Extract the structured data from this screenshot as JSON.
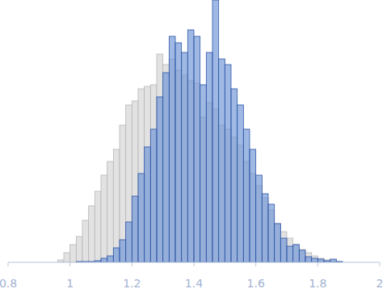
{
  "chart_data": {
    "type": "histogram",
    "bins": [
      0.96,
      0.98,
      1.0,
      1.02,
      1.04,
      1.06,
      1.08,
      1.1,
      1.12,
      1.14,
      1.16,
      1.18,
      1.2,
      1.22,
      1.24,
      1.26,
      1.28,
      1.3,
      1.32,
      1.34,
      1.36,
      1.38,
      1.4,
      1.42,
      1.44,
      1.46,
      1.48,
      1.5,
      1.52,
      1.54,
      1.56,
      1.58,
      1.6,
      1.62,
      1.64,
      1.66,
      1.68,
      1.7,
      1.72,
      1.74,
      1.76,
      1.78,
      1.8,
      1.82,
      1.84,
      1.86,
      1.88
    ],
    "series": [
      {
        "color": "#e2e2e2",
        "values": [
          3,
          12,
          22,
          32,
          52,
          70,
          88,
          108,
          125,
          140,
          170,
          195,
          200,
          215,
          218,
          220,
          258,
          245,
          252,
          238,
          232,
          225,
          222,
          180,
          198,
          190,
          170,
          165,
          155,
          145,
          125,
          110,
          95,
          80,
          65,
          48,
          38,
          30,
          22,
          16,
          12,
          8,
          5,
          3,
          2,
          1
        ]
      },
      {
        "color": "#6b93d6",
        "values": [
          0,
          0,
          0,
          1,
          1,
          1,
          2,
          5,
          8,
          18,
          28,
          50,
          82,
          110,
          143,
          165,
          205,
          235,
          280,
          272,
          260,
          288,
          280,
          220,
          260,
          325,
          252,
          245,
          215,
          195,
          165,
          140,
          108,
          85,
          72,
          48,
          30,
          20,
          22,
          15,
          7,
          5,
          4,
          2,
          4,
          1
        ]
      }
    ],
    "xlim": [
      0.8,
      2
    ],
    "xticks": [
      0.8,
      1,
      1.2,
      1.4,
      1.6,
      1.8,
      2
    ],
    "ylim": [
      0,
      325
    ],
    "tick_labels": "x"
  }
}
